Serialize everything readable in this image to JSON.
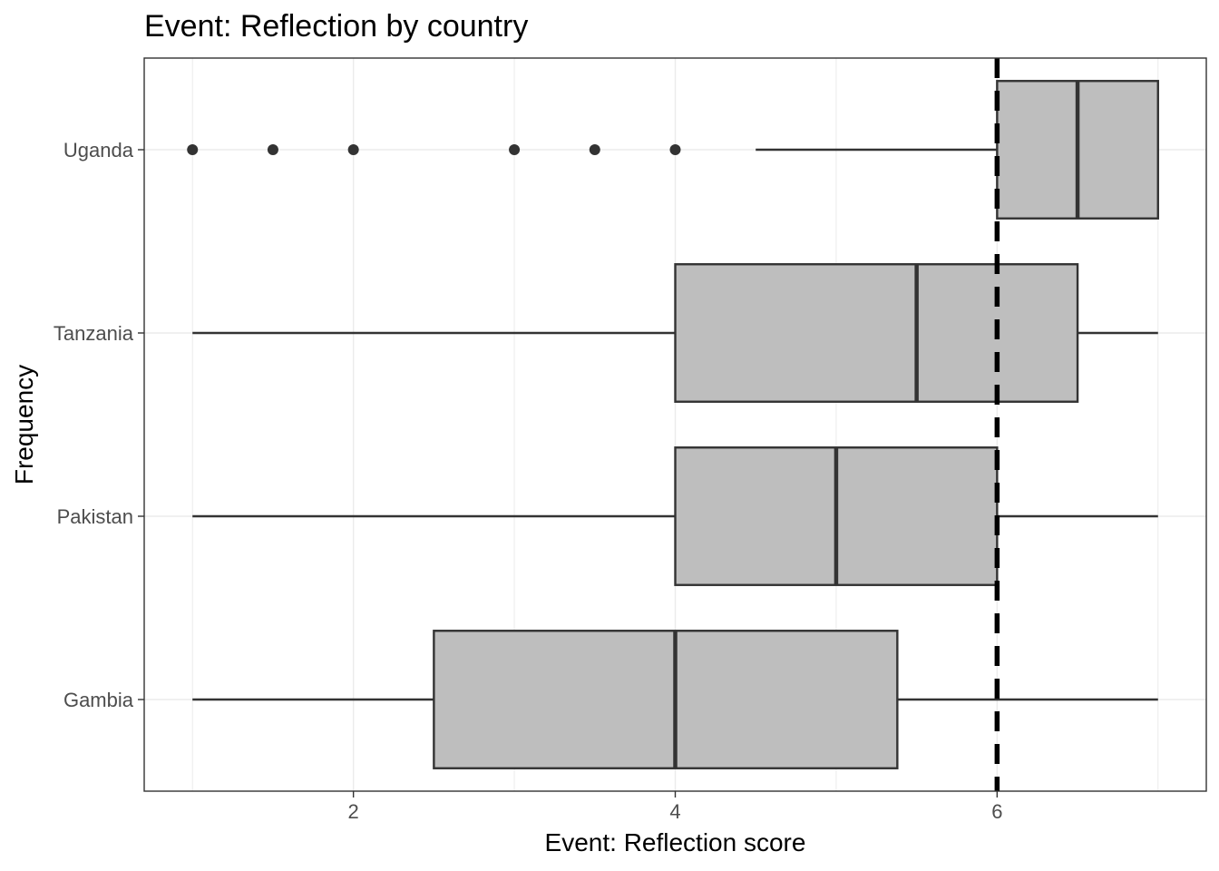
{
  "chart_data": {
    "type": "boxplot",
    "orientation": "horizontal",
    "title": "Event: Reflection by country",
    "xlabel": "Event: Reflection score",
    "ylabel": "Frequency",
    "xlim": [
      0.7,
      7.3
    ],
    "xticks": [
      2,
      4,
      6
    ],
    "grid": true,
    "reference_line": {
      "x": 6,
      "style": "dashed",
      "color": "#000000"
    },
    "box_fill": "#bebebe",
    "line_color": "#333333",
    "categories": [
      "Uganda",
      "Tanzania",
      "Pakistan",
      "Gambia"
    ],
    "boxes": [
      {
        "label": "Uganda",
        "whisker_low": 4.5,
        "q1": 6.0,
        "median": 6.5,
        "q3": 7.0,
        "whisker_high": 7.0,
        "outliers": [
          1.0,
          1.5,
          2.0,
          3.0,
          3.5,
          4.0
        ]
      },
      {
        "label": "Tanzania",
        "whisker_low": 1.0,
        "q1": 4.0,
        "median": 5.5,
        "q3": 6.5,
        "whisker_high": 7.0,
        "outliers": []
      },
      {
        "label": "Pakistan",
        "whisker_low": 1.0,
        "q1": 4.0,
        "median": 5.0,
        "q3": 6.0,
        "whisker_high": 7.0,
        "outliers": []
      },
      {
        "label": "Gambia",
        "whisker_low": 1.0,
        "q1": 2.5,
        "median": 4.0,
        "q3": 5.38,
        "whisker_high": 7.0,
        "outliers": []
      }
    ]
  }
}
